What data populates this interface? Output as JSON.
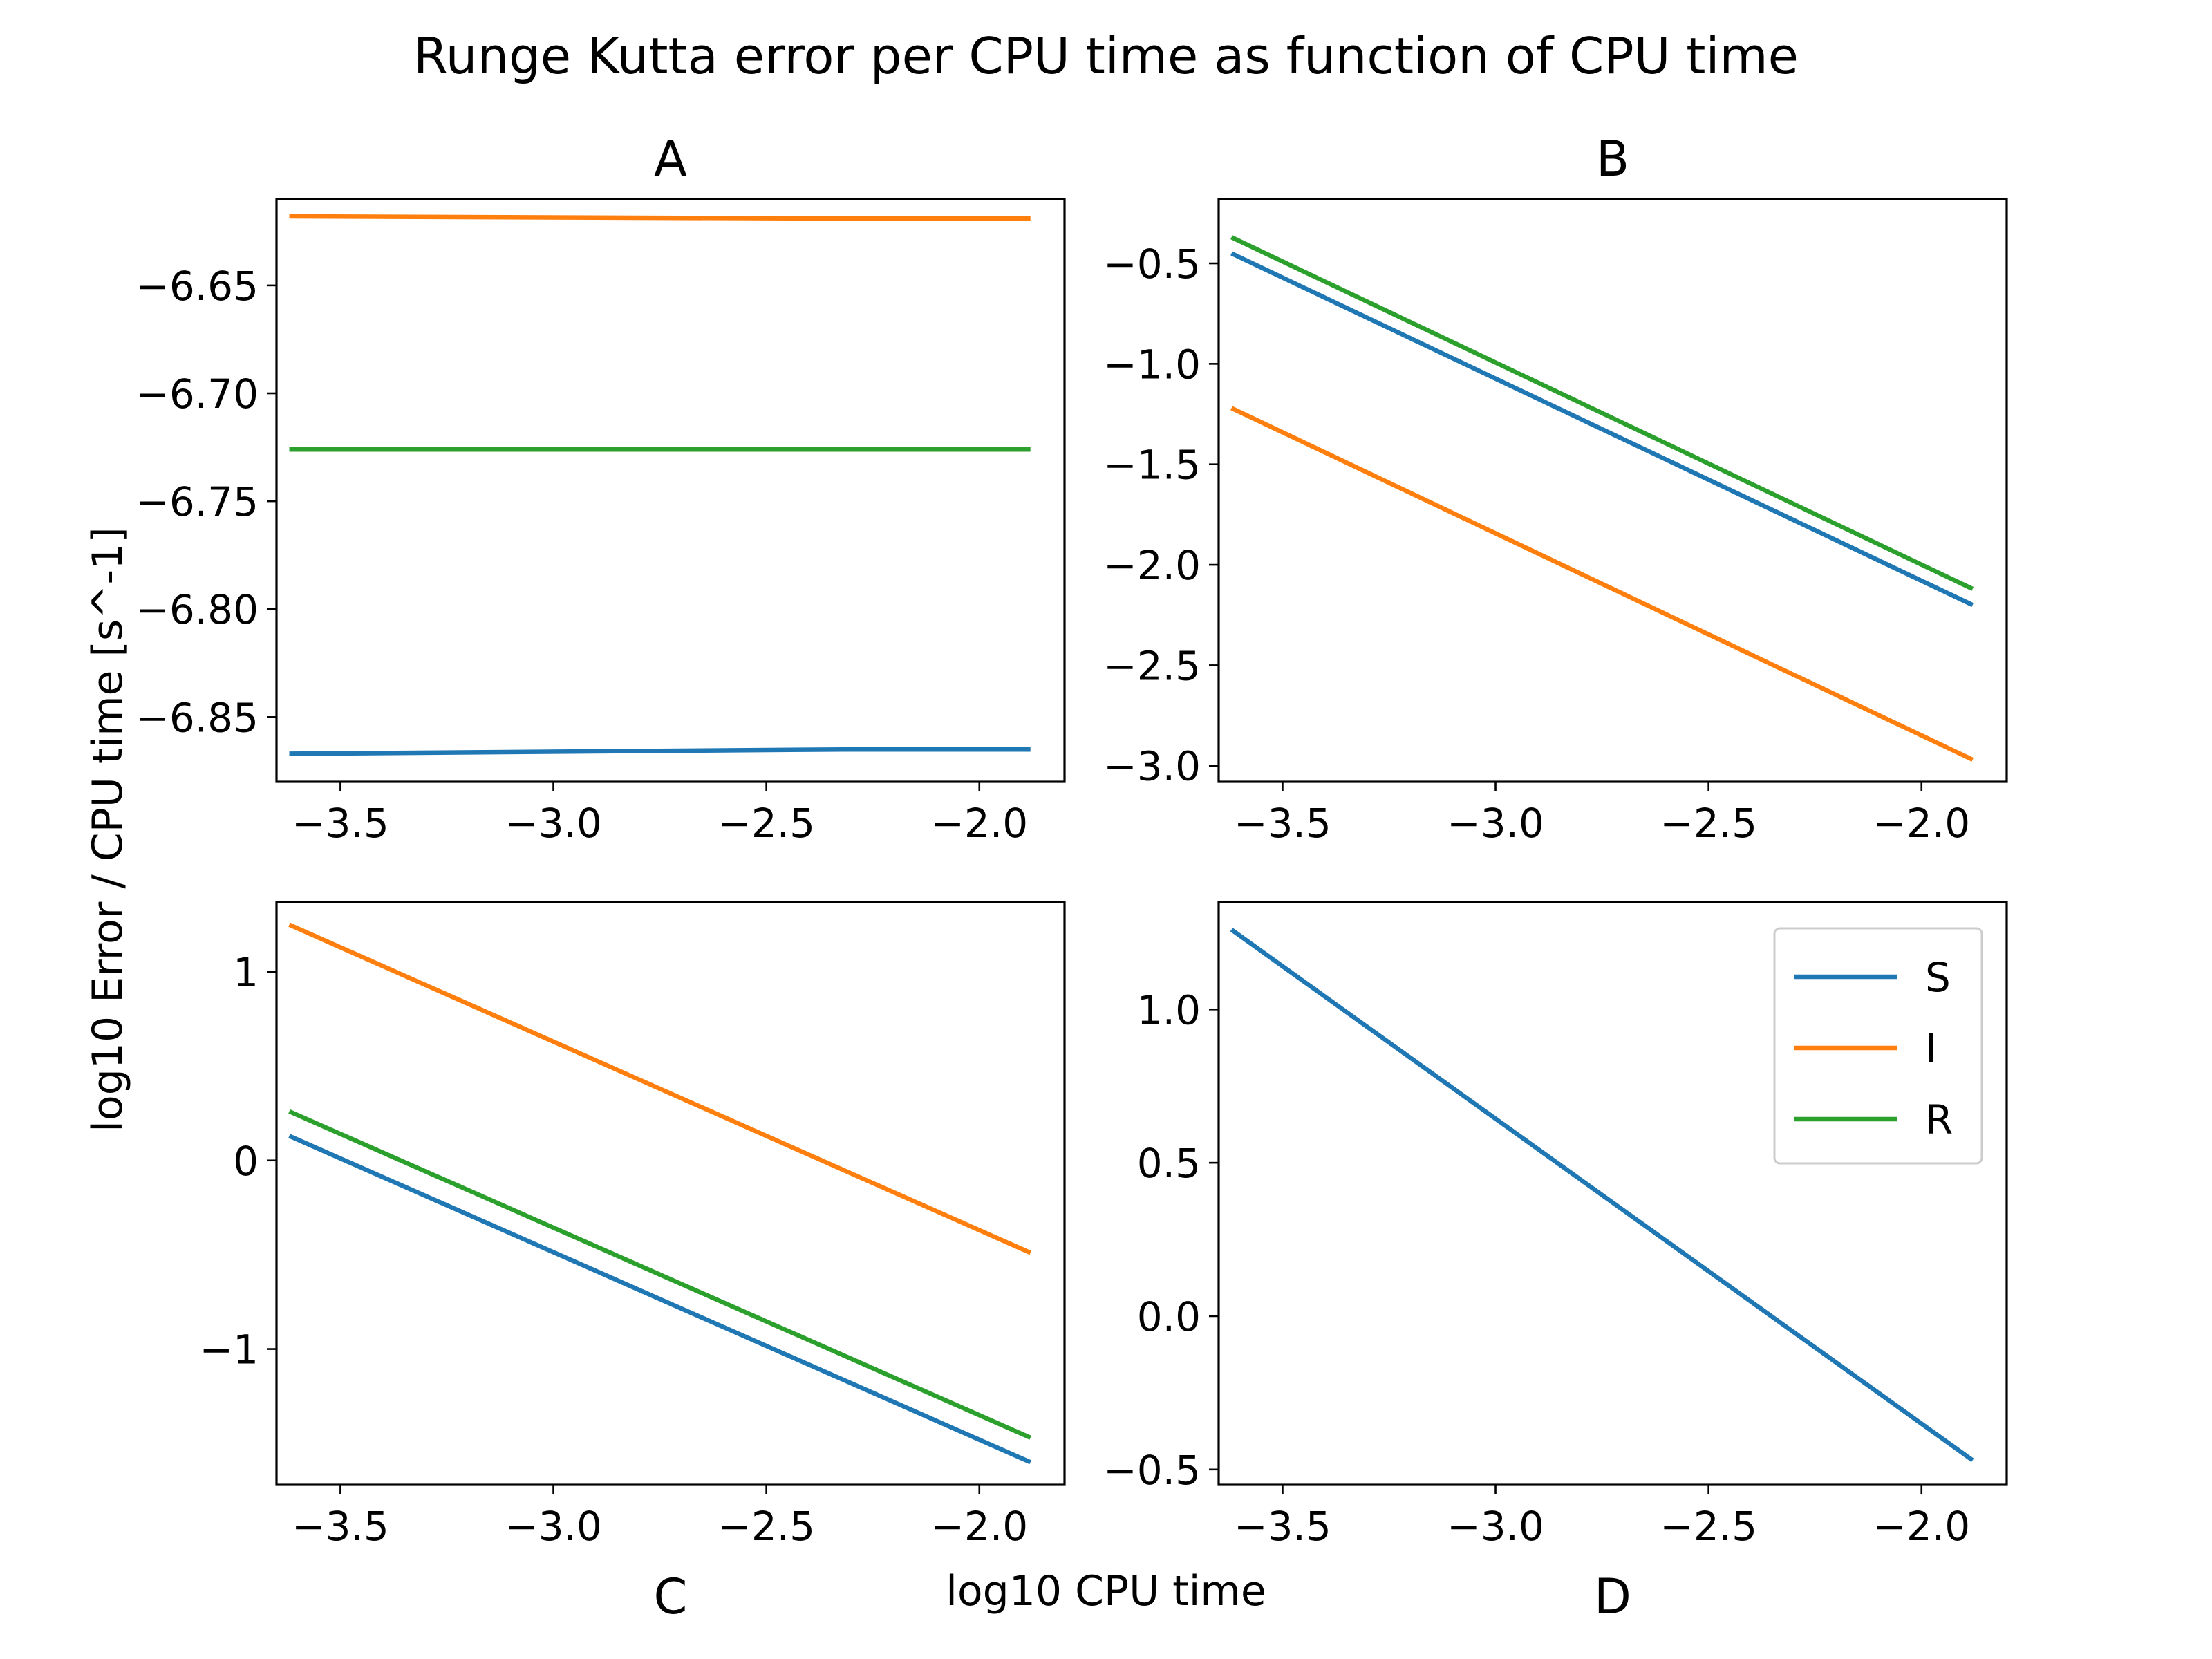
{
  "figure": {
    "title": "Runge Kutta error per CPU time as function of CPU time",
    "xlabel": "log10 CPU time",
    "ylabel": "log10 Error / CPU time [s^-1]"
  },
  "chart_data": [
    {
      "type": "line",
      "title": "A",
      "xlim": [
        -3.65,
        -1.8
      ],
      "ylim": [
        -6.88,
        -6.61
      ],
      "xticks": [
        -3.5,
        -3.0,
        -2.5,
        -2.0
      ],
      "xtick_labels": [
        "−3.5",
        "−3.0",
        "−2.5",
        "−2.0"
      ],
      "yticks": [
        -6.65,
        -6.7,
        -6.75,
        -6.8,
        -6.85
      ],
      "ytick_labels": [
        "−6.65",
        "−6.70",
        "−6.75",
        "−6.80",
        "−6.85"
      ],
      "x": [
        -3.62,
        -2.32,
        -1.88
      ],
      "series": [
        {
          "name": "S",
          "color": "#1f77b4",
          "values": [
            -6.867,
            -6.865,
            -6.865
          ]
        },
        {
          "name": "I",
          "color": "#ff7f0e",
          "values": [
            -6.618,
            -6.619,
            -6.619
          ]
        },
        {
          "name": "R",
          "color": "#2ca02c",
          "values": [
            -6.726,
            -6.726,
            -6.726
          ]
        }
      ]
    },
    {
      "type": "line",
      "title": "B",
      "xlim": [
        -3.65,
        -1.8
      ],
      "ylim": [
        -3.08,
        -0.18
      ],
      "xticks": [
        -3.5,
        -3.0,
        -2.5,
        -2.0
      ],
      "xtick_labels": [
        "−3.5",
        "−3.0",
        "−2.5",
        "−2.0"
      ],
      "yticks": [
        -0.5,
        -1.0,
        -1.5,
        -2.0,
        -2.5,
        -3.0
      ],
      "ytick_labels": [
        "−0.5",
        "−1.0",
        "−1.5",
        "−2.0",
        "−2.5",
        "−3.0"
      ],
      "x": [
        -3.62,
        -1.88
      ],
      "series": [
        {
          "name": "S",
          "color": "#1f77b4",
          "values": [
            -0.45,
            -2.2
          ]
        },
        {
          "name": "I",
          "color": "#ff7f0e",
          "values": [
            -1.22,
            -2.97
          ]
        },
        {
          "name": "R",
          "color": "#2ca02c",
          "values": [
            -0.37,
            -2.12
          ]
        }
      ]
    },
    {
      "type": "line",
      "title": "C",
      "xlim": [
        -3.65,
        -1.8
      ],
      "ylim": [
        -1.72,
        1.37
      ],
      "xticks": [
        -3.5,
        -3.0,
        -2.5,
        -2.0
      ],
      "xtick_labels": [
        "−3.5",
        "−3.0",
        "−2.5",
        "−2.0"
      ],
      "yticks": [
        1,
        0,
        -1
      ],
      "ytick_labels": [
        "1",
        "0",
        "−1"
      ],
      "x": [
        -3.62,
        -1.88
      ],
      "series": [
        {
          "name": "S",
          "color": "#1f77b4",
          "values": [
            0.13,
            -1.6
          ]
        },
        {
          "name": "I",
          "color": "#ff7f0e",
          "values": [
            1.25,
            -0.49
          ]
        },
        {
          "name": "R",
          "color": "#2ca02c",
          "values": [
            0.26,
            -1.47
          ]
        }
      ]
    },
    {
      "type": "line",
      "title": "D",
      "xlim": [
        -3.65,
        -1.8
      ],
      "ylim": [
        -0.55,
        1.35
      ],
      "xticks": [
        -3.5,
        -3.0,
        -2.5,
        -2.0
      ],
      "xtick_labels": [
        "−3.5",
        "−3.0",
        "−2.5",
        "−2.0"
      ],
      "yticks": [
        1.0,
        0.5,
        0.0,
        -0.5
      ],
      "ytick_labels": [
        "1.0",
        "0.5",
        "0.0",
        "−0.5"
      ],
      "x": [
        -3.62,
        -1.88
      ],
      "series": [
        {
          "name": "S",
          "color": "#1f77b4",
          "values": [
            1.26,
            -0.47
          ]
        }
      ],
      "legend": {
        "location": "upper right",
        "entries": [
          {
            "label": "S",
            "color": "#1f77b4"
          },
          {
            "label": "I",
            "color": "#ff7f0e"
          },
          {
            "label": "R",
            "color": "#2ca02c"
          }
        ]
      }
    }
  ]
}
